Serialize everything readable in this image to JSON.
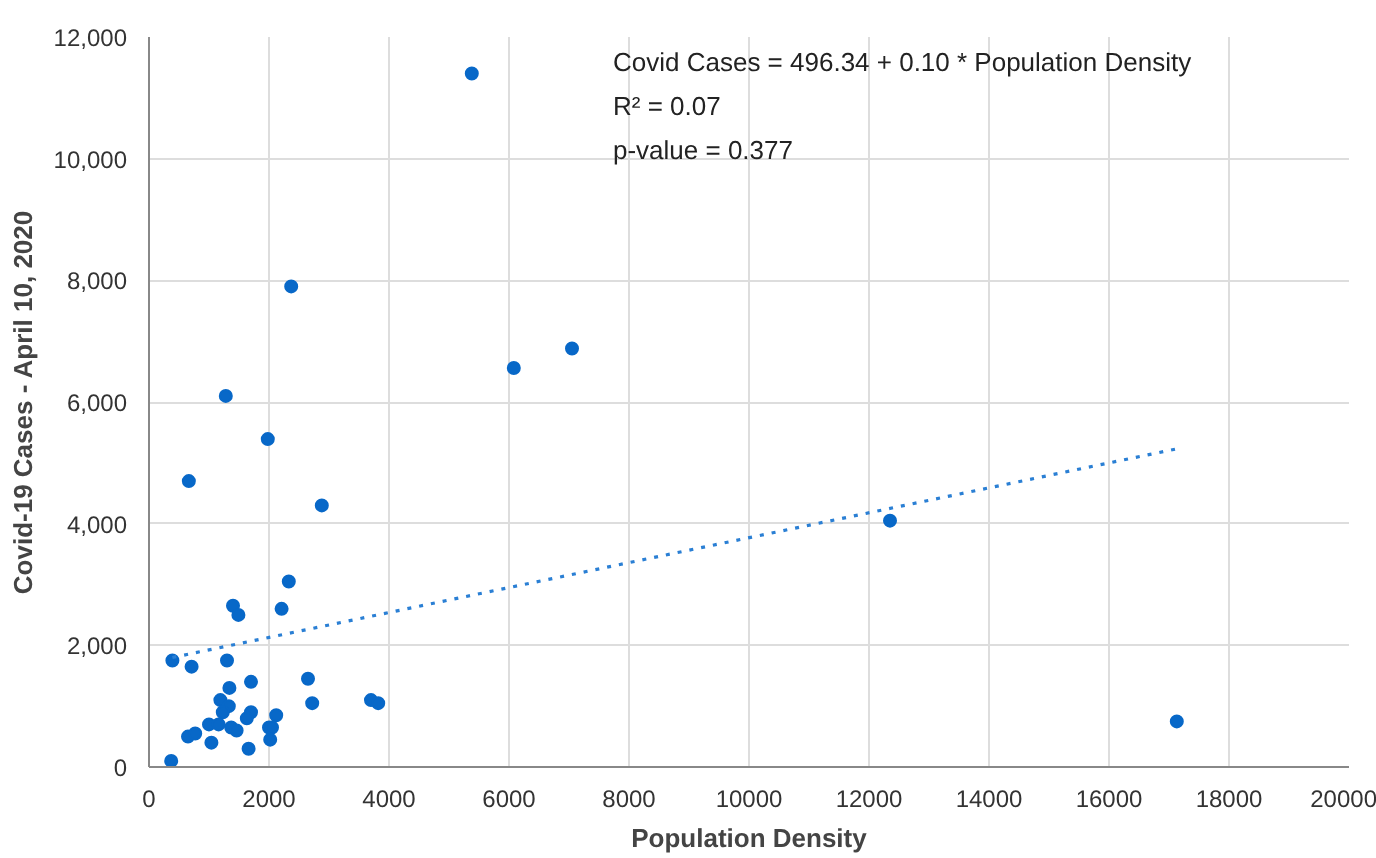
{
  "chart_data": {
    "type": "scatter",
    "xlabel": "Population Density",
    "ylabel": "Covid-19 Cases - April 10, 2020",
    "series": [
      {
        "color": "#0868c8",
        "marker": "circle",
        "x": [
          664,
          2880,
          2330,
          1400,
          1490,
          2210,
          390,
          710,
          1300,
          1340,
          1700,
          2650,
          2720,
          3700,
          3820,
          1190,
          1330,
          1230,
          1700,
          1630,
          2120,
          1000,
          1160,
          1370,
          1460,
          2000,
          2050,
          650,
          770,
          1040,
          1660,
          2020,
          370,
          5380,
          2370,
          1280,
          1980,
          6080,
          7050,
          12350,
          17130
        ],
        "values": [
          4700,
          4300,
          3050,
          2650,
          2500,
          2600,
          1750,
          1650,
          1750,
          1300,
          1400,
          1450,
          1050,
          1100,
          1050,
          1100,
          1000,
          900,
          900,
          800,
          850,
          700,
          700,
          650,
          600,
          650,
          650,
          500,
          550,
          400,
          300,
          450,
          100,
          11400,
          7900,
          6100,
          5390,
          6560,
          6880,
          4050,
          750
        ]
      },
      {
        "type": "line",
        "color": "#2a7fd4",
        "line_style": "dotted",
        "marker": "none",
        "x": [
          390,
          17130
        ],
        "values": [
          1800,
          5230
        ]
      }
    ],
    "xlim": [
      0,
      20000
    ],
    "xticks": [
      0,
      2000,
      4000,
      6000,
      8000,
      10000,
      12000,
      14000,
      16000,
      18000,
      20000
    ],
    "ylim": [
      0,
      12000
    ],
    "yticks": [
      {
        "value": 0,
        "label": "0"
      },
      {
        "value": 2000,
        "label": "2,000"
      },
      {
        "value": 4000,
        "label": "4,000"
      },
      {
        "value": 6000,
        "label": "6,000"
      },
      {
        "value": 8000,
        "label": "8,000"
      },
      {
        "value": 10000,
        "label": "10,000"
      },
      {
        "value": 12000,
        "label": "12,000"
      }
    ],
    "grid": true,
    "annotations": [
      "Covid Cases = 496.34 + 0.10 * Population Density",
      "R² = 0.07",
      "p-value = 0.377"
    ]
  }
}
